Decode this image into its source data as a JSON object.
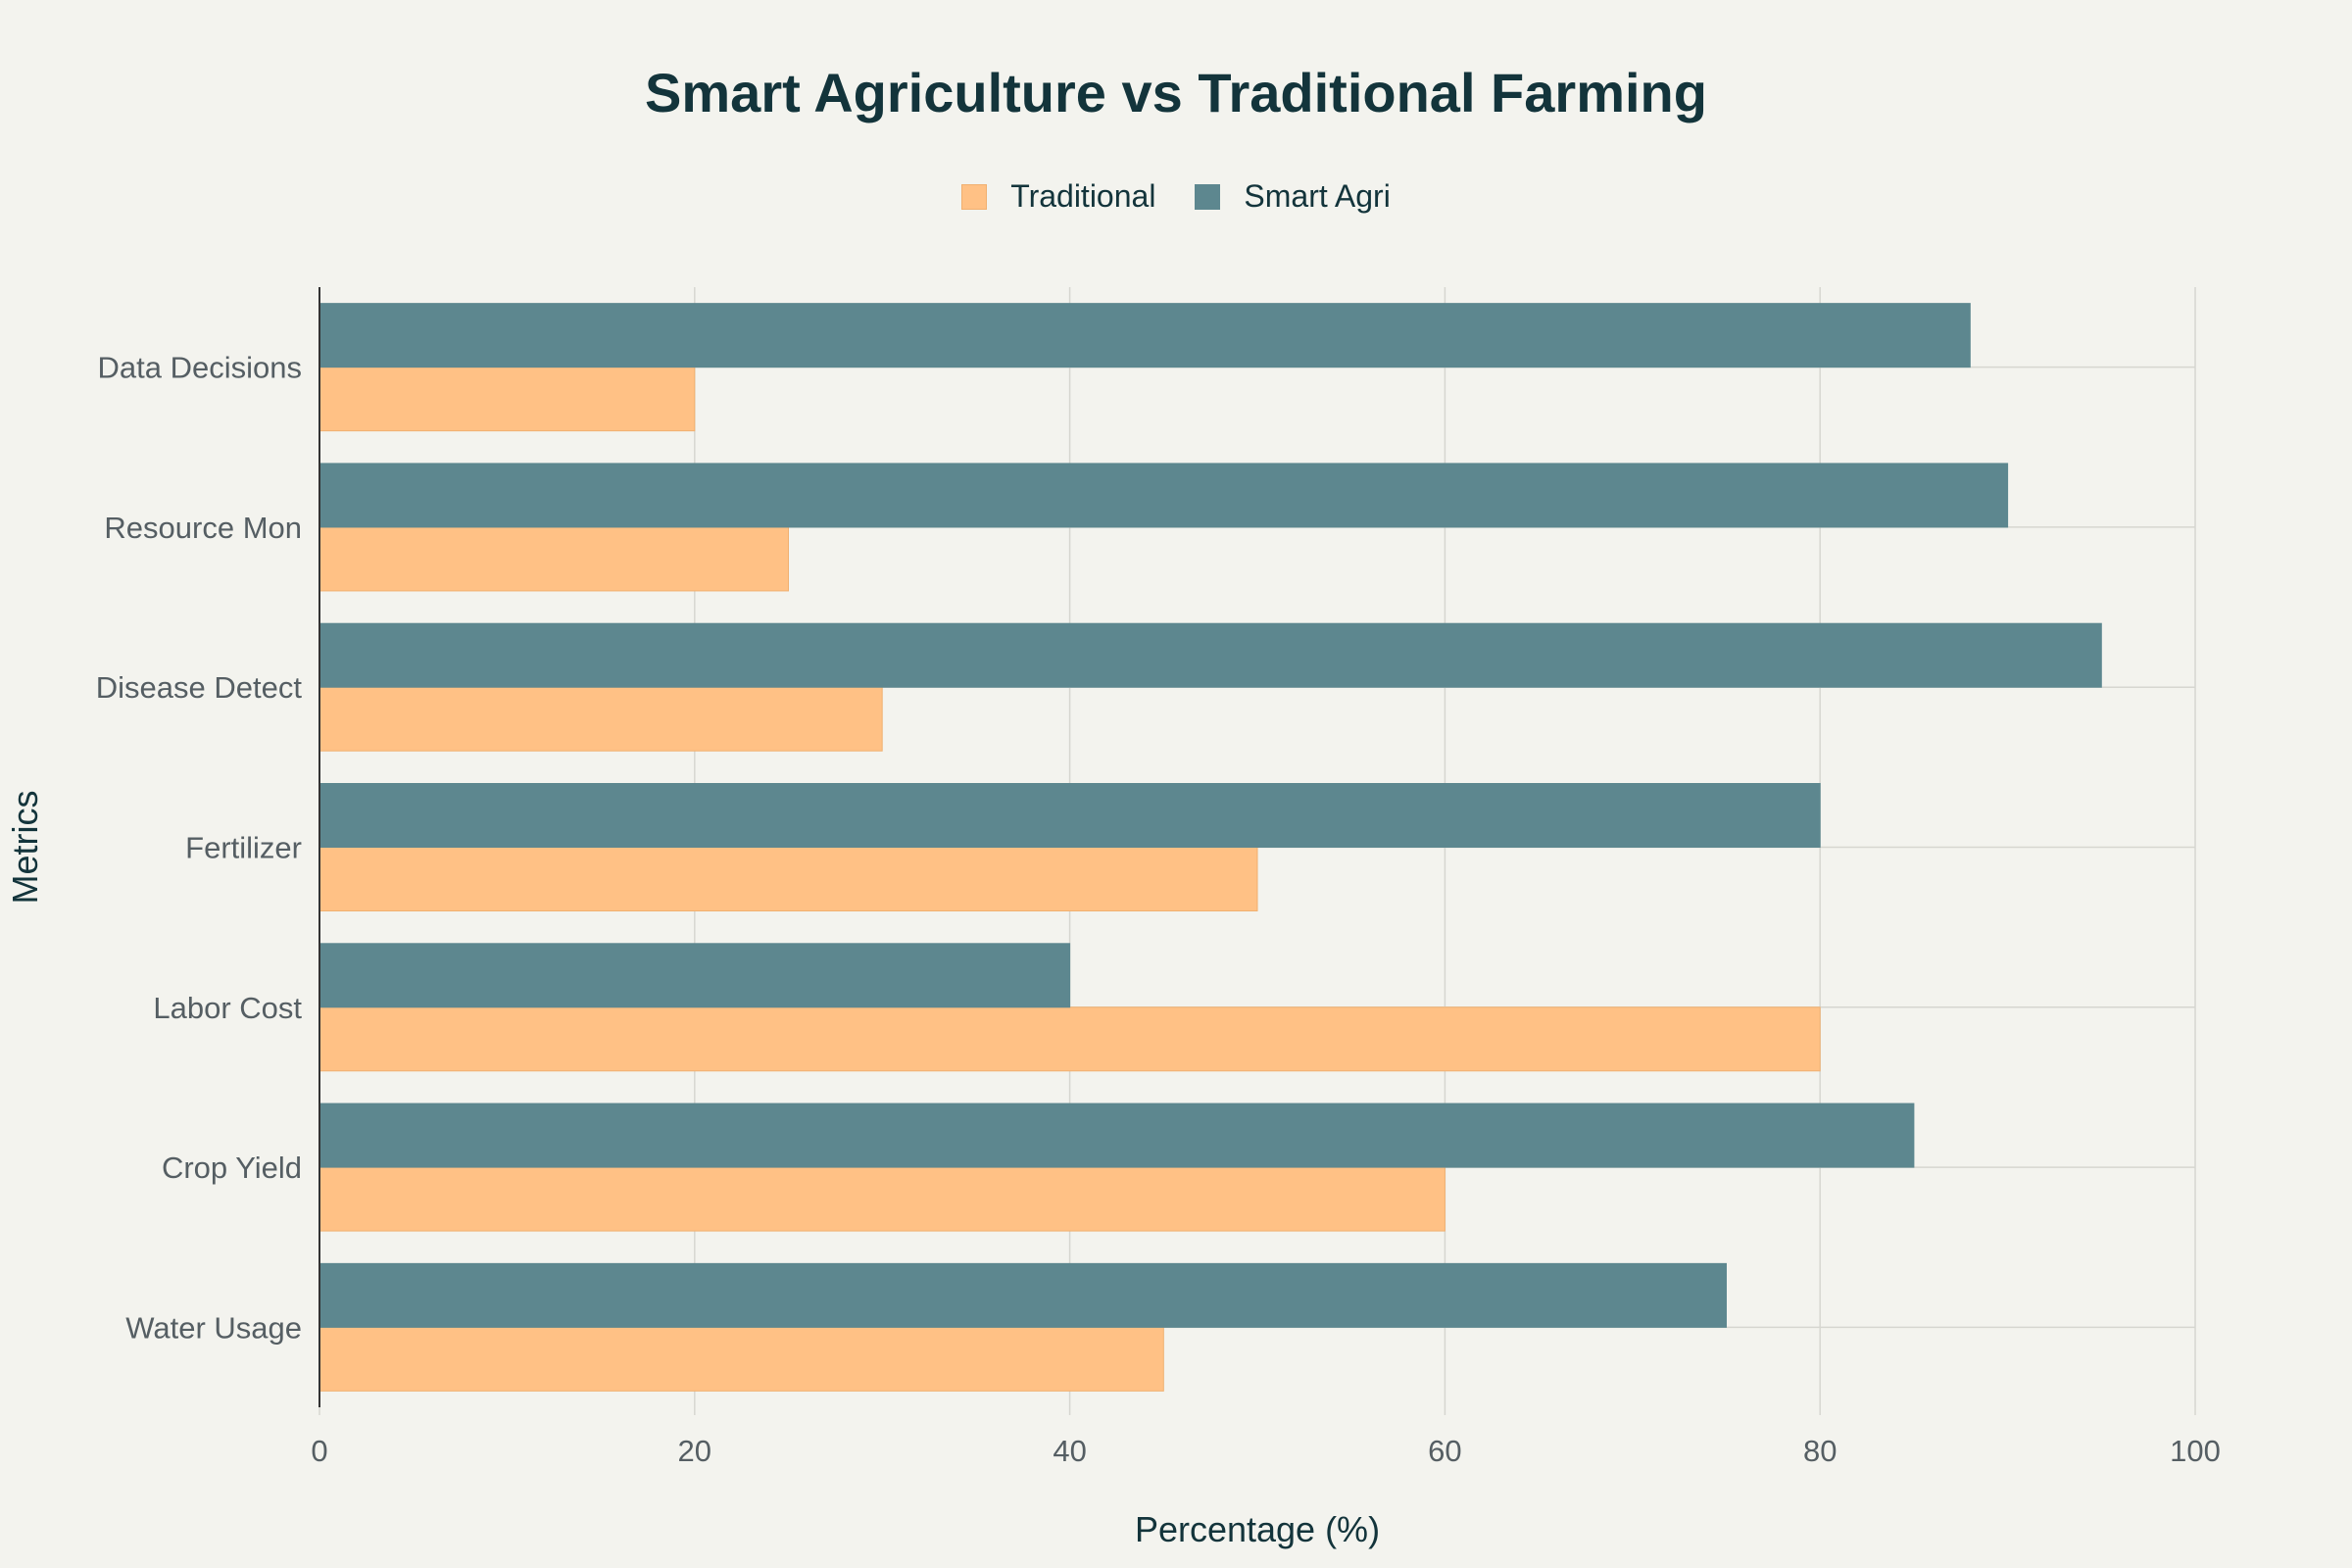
{
  "chart_data": {
    "type": "bar",
    "orientation": "horizontal",
    "title": "Smart Agriculture vs Traditional Farming",
    "xlabel": "Percentage (%)",
    "ylabel": "Metrics",
    "xlim": [
      0,
      100
    ],
    "xticks": [
      0,
      20,
      40,
      60,
      80,
      100
    ],
    "grid": true,
    "legend_position": "top-center",
    "categories": [
      "Water Usage",
      "Crop Yield",
      "Labor Cost",
      "Fertilizer",
      "Disease Detect",
      "Resource Mon",
      "Data Decisions"
    ],
    "series": [
      {
        "name": "Traditional",
        "color": "#ffc185",
        "values": [
          45,
          60,
          80,
          50,
          30,
          25,
          20
        ]
      },
      {
        "name": "Smart Agri",
        "color": "#5d878f",
        "values": [
          75,
          85,
          40,
          80,
          95,
          90,
          88
        ]
      }
    ]
  },
  "colors": {
    "background": "#f3f3ee",
    "title": "#13343b",
    "grid": "#d6d6d0",
    "axis_line": "#333333",
    "tick_text": "#555e63"
  }
}
